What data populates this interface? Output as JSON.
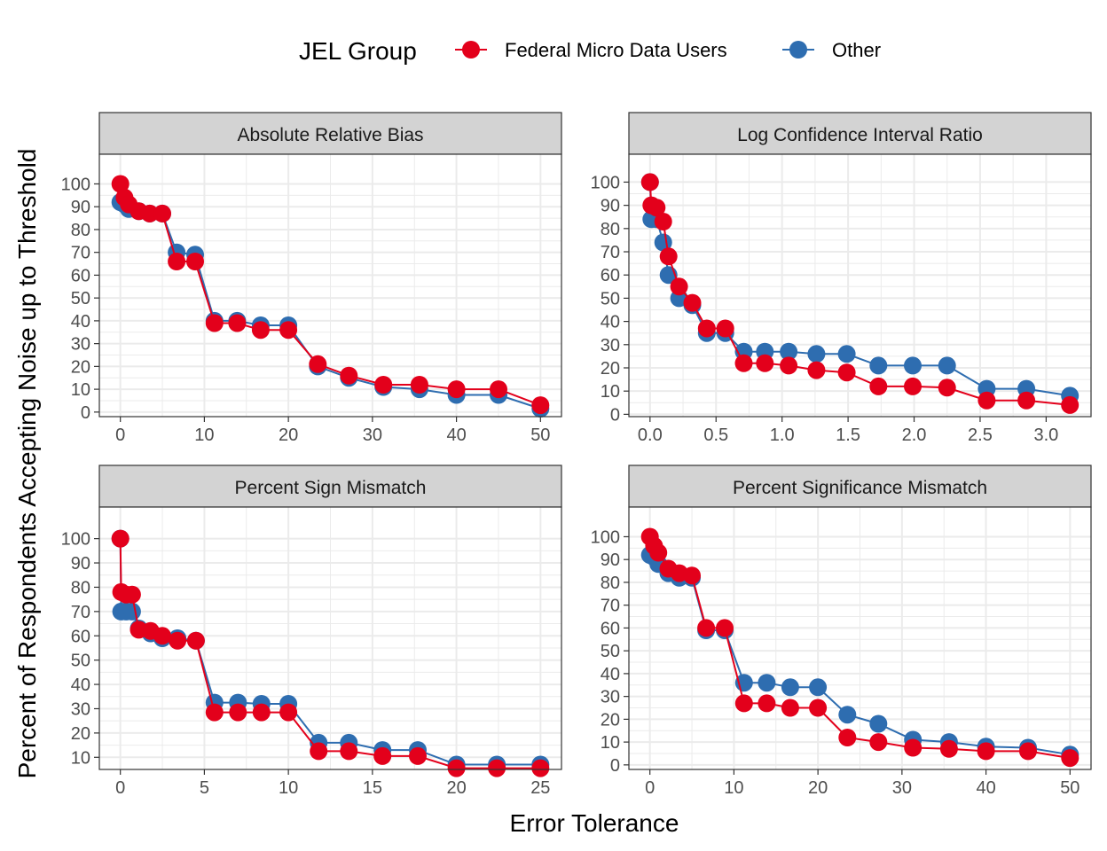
{
  "legend": {
    "title": "JEL Group",
    "placement": "top"
  },
  "colors": {
    "federal": "#E3001B",
    "other": "#2E6DB0",
    "strip_bg": "#D3D3D3",
    "grid": "#EBEBEB"
  },
  "chart_data": {
    "type": "line",
    "xlabel": "Error Tolerance",
    "ylabel": "Percent of Respondents Accepting Noise up to Threshold",
    "grid": true,
    "series_names": [
      "Federal Micro Data Users",
      "Other"
    ],
    "panels": [
      {
        "title": "Absolute Relative Bias",
        "xlim": [
          -2.5,
          52.5
        ],
        "ylim": [
          -2,
          113
        ],
        "xticks": [
          0,
          10,
          20,
          30,
          40,
          50
        ],
        "xtick_labels": [
          "0",
          "10",
          "20",
          "30",
          "40",
          "50"
        ],
        "yticks": [
          0,
          10,
          20,
          30,
          40,
          50,
          60,
          70,
          80,
          90,
          100
        ],
        "series": [
          {
            "name": "Federal Micro Data Users",
            "x": [
              0,
              0.5,
              1,
              2.2,
              3.5,
              5,
              6.7,
              8.9,
              11.2,
              13.9,
              16.7,
              20,
              23.5,
              27.2,
              31.3,
              35.6,
              40,
              45,
              50
            ],
            "y": [
              100,
              94,
              91,
              88,
              87,
              87,
              66,
              66,
              39,
              39,
              36,
              36,
              21,
              16,
              12,
              12,
              10,
              10,
              3
            ]
          },
          {
            "name": "Other",
            "x": [
              0,
              0.5,
              1,
              2.2,
              3.5,
              5,
              6.7,
              8.9,
              11.2,
              13.9,
              16.7,
              20,
              23.5,
              27.2,
              31.3,
              35.6,
              40,
              45,
              50
            ],
            "y": [
              92,
              91,
              89,
              88,
              87,
              87,
              70,
              69,
              40,
              40,
              38,
              38,
              20,
              15,
              11,
              10,
              7.5,
              7.5,
              1.5
            ]
          }
        ]
      },
      {
        "title": "Log Confidence Interval Ratio",
        "xlim": [
          -0.16,
          3.34
        ],
        "ylim": [
          -1,
          112
        ],
        "xticks": [
          0,
          0.5,
          1,
          1.5,
          2,
          2.5,
          3
        ],
        "xtick_labels": [
          "0.0",
          "0.5",
          "1.0",
          "1.5",
          "2.0",
          "2.5",
          "3.0"
        ],
        "yticks": [
          0,
          10,
          20,
          30,
          40,
          50,
          60,
          70,
          80,
          90,
          100
        ],
        "series": [
          {
            "name": "Federal Micro Data Users",
            "x": [
              0,
              0.01,
              0.05,
              0.1,
              0.14,
              0.22,
              0.32,
              0.43,
              0.57,
              0.71,
              0.87,
              1.05,
              1.26,
              1.49,
              1.73,
              1.99,
              2.25,
              2.55,
              2.85,
              3.18
            ],
            "y": [
              100,
              90,
              89,
              83,
              68,
              55,
              48,
              37,
              37,
              22,
              22,
              21,
              19,
              18,
              12,
              12,
              11.5,
              6,
              6,
              4
            ]
          },
          {
            "name": "Other",
            "x": [
              0,
              0.01,
              0.05,
              0.1,
              0.14,
              0.22,
              0.32,
              0.43,
              0.57,
              0.71,
              0.87,
              1.05,
              1.26,
              1.49,
              1.73,
              1.99,
              2.25,
              2.55,
              2.85,
              3.18
            ],
            "y": [
              100,
              84,
              84,
              74,
              60,
              50,
              47,
              35,
              35,
              27,
              27,
              27,
              26,
              26,
              21,
              21,
              21,
              11,
              11,
              8
            ]
          }
        ]
      },
      {
        "title": "Percent Sign Mismatch",
        "xlim": [
          -1.25,
          26.25
        ],
        "ylim": [
          5,
          113
        ],
        "xticks": [
          0,
          5,
          10,
          15,
          20,
          25
        ],
        "xtick_labels": [
          "0",
          "5",
          "10",
          "15",
          "20",
          "25"
        ],
        "yticks": [
          10,
          20,
          30,
          40,
          50,
          60,
          70,
          80,
          90,
          100
        ],
        "series": [
          {
            "name": "Federal Micro Data Users",
            "x": [
              0,
              0.05,
              0.35,
              0.7,
              1.1,
              1.8,
              2.5,
              3.4,
              4.5,
              5.6,
              7,
              8.4,
              10,
              11.8,
              13.6,
              15.6,
              17.7,
              20,
              22.4,
              25
            ],
            "y": [
              100,
              78,
              77,
              77,
              62.5,
              62,
              60,
              58,
              58,
              28.5,
              28.5,
              28.5,
              28.5,
              12.5,
              12.5,
              10.5,
              10.5,
              5.5,
              5.5,
              5.5
            ]
          },
          {
            "name": "Other",
            "x": [
              0,
              0.05,
              0.35,
              0.7,
              1.1,
              1.8,
              2.5,
              3.4,
              4.5,
              5.6,
              7,
              8.4,
              10,
              11.8,
              13.6,
              15.6,
              17.7,
              20,
              22.4,
              25
            ],
            "y": [
              100,
              70,
              70,
              70,
              63,
              61,
              59,
              59,
              58,
              32.5,
              32.5,
              32,
              32,
              16,
              16,
              13,
              13,
              7,
              7,
              7
            ]
          }
        ]
      },
      {
        "title": "Percent Significance Mismatch",
        "xlim": [
          -2.5,
          52.5
        ],
        "ylim": [
          -2,
          113
        ],
        "xticks": [
          0,
          10,
          20,
          30,
          40,
          50
        ],
        "xtick_labels": [
          "0",
          "10",
          "20",
          "30",
          "40",
          "50"
        ],
        "yticks": [
          0,
          10,
          20,
          30,
          40,
          50,
          60,
          70,
          80,
          90,
          100
        ],
        "series": [
          {
            "name": "Federal Micro Data Users",
            "x": [
              0,
              0.5,
              1,
              2.2,
              3.5,
              5,
              6.7,
              8.9,
              11.2,
              13.9,
              16.7,
              20,
              23.5,
              27.2,
              31.3,
              35.6,
              40,
              45,
              50
            ],
            "y": [
              100,
              96,
              93,
              86,
              84,
              83,
              60,
              60,
              27,
              27,
              25,
              25,
              12,
              10,
              7.5,
              7,
              6,
              6,
              3
            ]
          },
          {
            "name": "Other",
            "x": [
              0,
              0.5,
              1,
              2.2,
              3.5,
              5,
              6.7,
              8.9,
              11.2,
              13.9,
              16.7,
              20,
              23.5,
              27.2,
              31.3,
              35.6,
              40,
              45,
              50
            ],
            "y": [
              92,
              91,
              88,
              84,
              82,
              82,
              59,
              59,
              36,
              36,
              34,
              34,
              22,
              18,
              11,
              10,
              8,
              7.5,
              4.5
            ]
          }
        ]
      }
    ]
  }
}
